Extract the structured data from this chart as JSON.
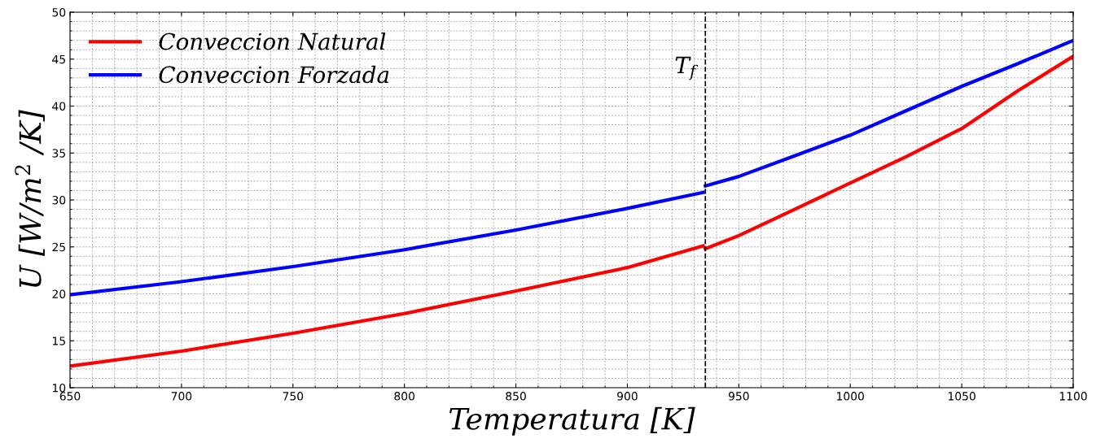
{
  "chart_data": {
    "type": "line",
    "xlabel": "Temperatura [K]",
    "ylabel": "U [W/m$^{2}$ /K]",
    "x": [
      650,
      700,
      750,
      800,
      850,
      900,
      934,
      934.5,
      935,
      950,
      975,
      1000,
      1025,
      1050,
      1075,
      1100
    ],
    "series": [
      {
        "name": "Conveccion Natural",
        "color": "#ff0000",
        "values": [
          12.3,
          13.9,
          15.8,
          17.9,
          20.3,
          22.8,
          25.1,
          null,
          24.8,
          26.2,
          29.0,
          31.8,
          34.6,
          37.6,
          41.6,
          45.3
        ]
      },
      {
        "name": "Conveccion Forzada",
        "color": "#0000ff",
        "values": [
          19.9,
          21.3,
          22.9,
          24.7,
          26.8,
          29.1,
          30.8,
          null,
          31.5,
          32.5,
          34.7,
          36.9,
          39.5,
          42.1,
          44.5,
          47.0
        ]
      }
    ],
    "xlim": [
      650,
      1100
    ],
    "xticks": [
      650,
      700,
      750,
      800,
      850,
      900,
      950,
      1000,
      1050,
      1100
    ],
    "ylim": [
      10,
      50
    ],
    "yticks": [
      10,
      15,
      20,
      25,
      30,
      35,
      40,
      45,
      50
    ],
    "ref_lines": [
      {
        "axis": "x",
        "value": 935,
        "label": "T$_{f}$",
        "color": "#000000",
        "line_style": "dashed"
      }
    ],
    "grid": true,
    "legend": "top left",
    "line_style": "solid",
    "marker": "none"
  }
}
